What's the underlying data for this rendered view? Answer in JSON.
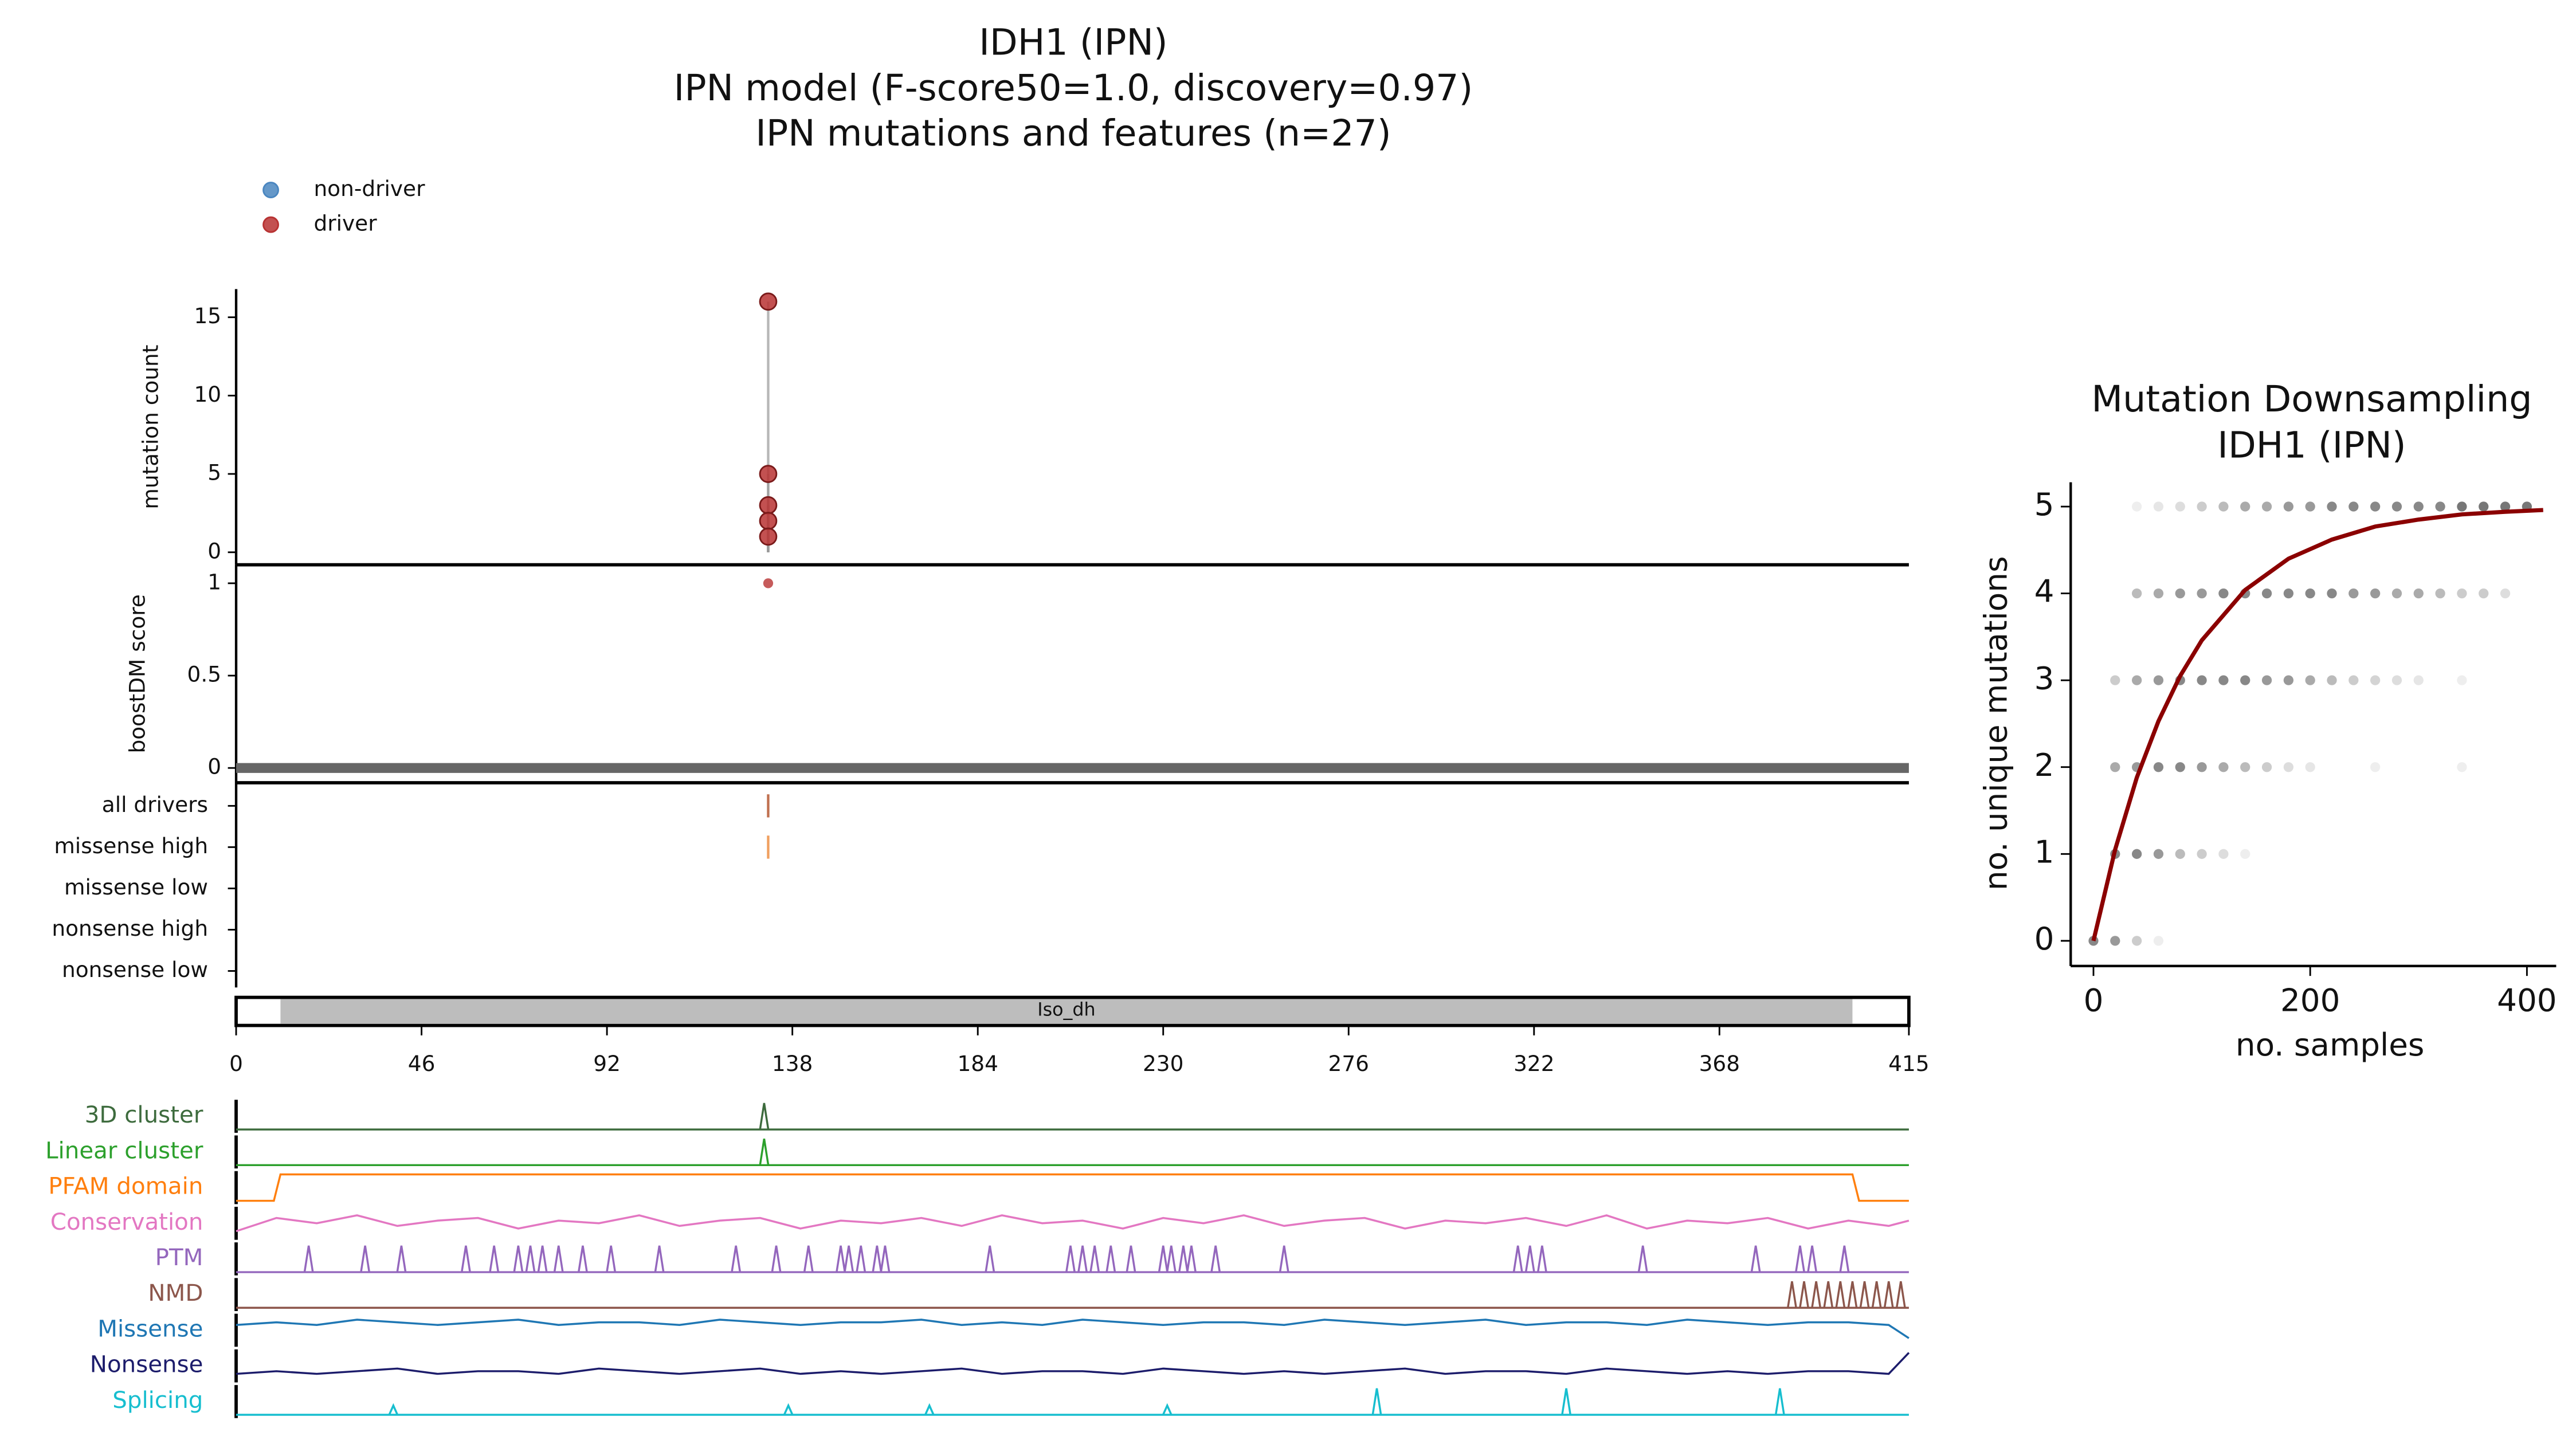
{
  "chart_data": [
    {
      "type": "needle",
      "title": [
        "IDH1 (IPN)",
        "IPN model (F-score50=1.0, discovery=0.97)",
        "IPN mutations and features (n=27)"
      ],
      "series": [
        {
          "name": "non-driver",
          "color": "#4a86c0",
          "x": [],
          "values": []
        },
        {
          "name": "driver",
          "color": "#b83232",
          "x": [
            132,
            132,
            132,
            132,
            132
          ],
          "values": [
            16,
            5,
            3,
            2,
            1
          ]
        }
      ],
      "xlim": [
        0,
        415
      ],
      "xticks": [
        0,
        46,
        92,
        138,
        184,
        230,
        276,
        322,
        368,
        415
      ],
      "ylabel": "mutation count",
      "ylim": [
        -0.8,
        16.8
      ],
      "yticks": [
        0,
        5,
        10,
        15
      ],
      "score": {
        "ylabel": "boostDM score",
        "ylim": [
          -0.08,
          1.1
        ],
        "yticks": [
          0,
          0.5,
          1
        ],
        "color": "#b83232",
        "x": [
          132
        ],
        "values": [
          1
        ]
      },
      "features": {
        "categories": [
          "all drivers",
          "missense high",
          "missense low",
          "nonsense high",
          "nonsense low"
        ],
        "colors": [
          "#c07050",
          "#f0a060",
          "#80b0e0",
          "#a070c0",
          "#c0a0e0"
        ],
        "x": [
          [
            132
          ],
          [
            132
          ],
          [],
          [],
          []
        ]
      },
      "domain": {
        "name": "Iso_dh",
        "start": 11,
        "end": 401
      },
      "signal_x": [
        0,
        10,
        20,
        30,
        40,
        50,
        60,
        70,
        80,
        90,
        100,
        110,
        120,
        130,
        140,
        150,
        160,
        170,
        180,
        190,
        200,
        210,
        220,
        230,
        240,
        250,
        260,
        270,
        280,
        290,
        300,
        310,
        320,
        330,
        340,
        350,
        360,
        370,
        380,
        390,
        400,
        410,
        415
      ],
      "tracks": [
        {
          "name": "3D cluster",
          "color": "#3d6b3d",
          "kind": "peaks",
          "peaks": [
            131
          ],
          "heights": [
            1
          ]
        },
        {
          "name": "Linear cluster",
          "color": "#2ca02c",
          "kind": "peaks",
          "peaks": [
            131
          ],
          "heights": [
            1
          ]
        },
        {
          "name": "PFAM domain",
          "color": "#ff7f0e",
          "kind": "domain"
        },
        {
          "name": "Conservation",
          "color": "#e377c2",
          "kind": "signal",
          "values": [
            0.2,
            0.7,
            0.5,
            0.8,
            0.4,
            0.6,
            0.7,
            0.3,
            0.6,
            0.5,
            0.8,
            0.4,
            0.6,
            0.7,
            0.3,
            0.6,
            0.5,
            0.7,
            0.4,
            0.8,
            0.5,
            0.6,
            0.3,
            0.7,
            0.5,
            0.8,
            0.4,
            0.6,
            0.7,
            0.3,
            0.6,
            0.5,
            0.7,
            0.4,
            0.8,
            0.3,
            0.6,
            0.5,
            0.7,
            0.3,
            0.6,
            0.4,
            0.6
          ]
        },
        {
          "name": "PTM",
          "color": "#9467bd",
          "kind": "peaks",
          "peaks": [
            18,
            32,
            41,
            57,
            64,
            70,
            73,
            76,
            80,
            86,
            93,
            105,
            124,
            134,
            142,
            150,
            152,
            155,
            159,
            161,
            187,
            207,
            210,
            213,
            217,
            222,
            230,
            232,
            235,
            237,
            243,
            260,
            318,
            321,
            324,
            349,
            377,
            388,
            391,
            399
          ],
          "heights": [
            1,
            1,
            1,
            1,
            1,
            1,
            1,
            1,
            1,
            1,
            1,
            1,
            1,
            1,
            1,
            1,
            1,
            1,
            1,
            1,
            1,
            1,
            1,
            1,
            1,
            1,
            1,
            1,
            1,
            1,
            1,
            1,
            1,
            1,
            1,
            1,
            1,
            1,
            1,
            1
          ]
        },
        {
          "name": "NMD",
          "color": "#8c564b",
          "kind": "peaks",
          "peaks": [
            386,
            389,
            392,
            395,
            398,
            401,
            404,
            407,
            410,
            413
          ],
          "heights": [
            1,
            1,
            1,
            1,
            1,
            1,
            1,
            1,
            1,
            1
          ]
        },
        {
          "name": "Missense",
          "color": "#1f77b4",
          "kind": "signal",
          "values": [
            0.7,
            0.8,
            0.7,
            0.9,
            0.8,
            0.7,
            0.8,
            0.9,
            0.7,
            0.8,
            0.8,
            0.7,
            0.9,
            0.8,
            0.7,
            0.8,
            0.8,
            0.9,
            0.7,
            0.8,
            0.7,
            0.9,
            0.8,
            0.7,
            0.8,
            0.8,
            0.7,
            0.9,
            0.8,
            0.7,
            0.8,
            0.9,
            0.7,
            0.8,
            0.8,
            0.7,
            0.9,
            0.8,
            0.7,
            0.8,
            0.8,
            0.7,
            0.2
          ]
        },
        {
          "name": "Nonsense",
          "color": "#1c1c6b",
          "kind": "signal",
          "values": [
            0.2,
            0.3,
            0.2,
            0.3,
            0.4,
            0.2,
            0.3,
            0.3,
            0.2,
            0.4,
            0.3,
            0.2,
            0.3,
            0.4,
            0.2,
            0.3,
            0.2,
            0.3,
            0.4,
            0.2,
            0.3,
            0.3,
            0.2,
            0.4,
            0.3,
            0.2,
            0.3,
            0.2,
            0.3,
            0.4,
            0.2,
            0.3,
            0.3,
            0.2,
            0.4,
            0.3,
            0.2,
            0.3,
            0.2,
            0.3,
            0.3,
            0.2,
            1.0
          ]
        },
        {
          "name": "Splicing",
          "color": "#17becf",
          "kind": "peaks",
          "peaks": [
            39,
            137,
            172,
            231,
            283,
            330,
            383
          ],
          "heights": [
            0.35,
            0.35,
            0.35,
            0.35,
            1,
            1,
            1
          ]
        }
      ]
    },
    {
      "type": "scatter",
      "title": [
        "Mutation Downsampling",
        "IDH1 (IPN)"
      ],
      "xlabel": "no. samples",
      "ylabel": "no. unique mutations",
      "xlim": [
        -21,
        427
      ],
      "ylim": [
        -0.29,
        5.28
      ],
      "xticks": [
        0,
        200,
        400
      ],
      "yticks": [
        0,
        1,
        2,
        3,
        4,
        5
      ],
      "color": "#555555",
      "x": [
        0,
        20,
        40,
        60,
        20,
        40,
        60,
        80,
        100,
        120,
        140,
        20,
        40,
        60,
        80,
        100,
        120,
        140,
        160,
        180,
        200,
        260,
        340,
        20,
        40,
        60,
        80,
        100,
        120,
        140,
        160,
        180,
        200,
        220,
        240,
        260,
        280,
        300,
        340,
        40,
        60,
        80,
        100,
        120,
        140,
        160,
        180,
        200,
        220,
        240,
        260,
        280,
        300,
        320,
        340,
        360,
        380,
        40,
        60,
        80,
        100,
        120,
        140,
        160,
        180,
        200,
        220,
        240,
        260,
        280,
        300,
        320,
        340,
        360,
        380,
        400
      ],
      "values": [
        0,
        0,
        0,
        0,
        1,
        1,
        1,
        1,
        1,
        1,
        1,
        2,
        2,
        2,
        2,
        2,
        2,
        2,
        2,
        2,
        2,
        2,
        2,
        3,
        3,
        3,
        3,
        3,
        3,
        3,
        3,
        3,
        3,
        3,
        3,
        3,
        3,
        3,
        3,
        4,
        4,
        4,
        4,
        4,
        4,
        4,
        4,
        4,
        4,
        4,
        4,
        4,
        4,
        4,
        4,
        4,
        4,
        5,
        5,
        5,
        5,
        5,
        5,
        5,
        5,
        5,
        5,
        5,
        5,
        5,
        5,
        5,
        5,
        5,
        5,
        5
      ],
      "alpha": [
        0.7,
        0.6,
        0.3,
        0.1,
        0.7,
        0.7,
        0.6,
        0.4,
        0.3,
        0.2,
        0.1,
        0.5,
        0.6,
        0.7,
        0.7,
        0.6,
        0.5,
        0.4,
        0.3,
        0.2,
        0.15,
        0.1,
        0.1,
        0.3,
        0.5,
        0.6,
        0.7,
        0.7,
        0.7,
        0.7,
        0.6,
        0.6,
        0.5,
        0.4,
        0.3,
        0.25,
        0.2,
        0.15,
        0.1,
        0.4,
        0.5,
        0.6,
        0.6,
        0.7,
        0.7,
        0.7,
        0.7,
        0.7,
        0.7,
        0.6,
        0.6,
        0.5,
        0.5,
        0.4,
        0.3,
        0.3,
        0.2,
        0.1,
        0.15,
        0.2,
        0.3,
        0.4,
        0.5,
        0.5,
        0.6,
        0.6,
        0.7,
        0.7,
        0.7,
        0.7,
        0.7,
        0.7,
        0.8,
        0.8,
        0.8,
        0.8
      ],
      "curve": {
        "color": "#8b0000",
        "x": [
          0,
          20,
          40,
          60,
          80,
          100,
          140,
          180,
          220,
          260,
          300,
          340,
          380,
          415
        ],
        "values": [
          0,
          1.05,
          1.88,
          2.53,
          3.05,
          3.46,
          4.04,
          4.4,
          4.62,
          4.77,
          4.85,
          4.91,
          4.94,
          4.96
        ]
      }
    }
  ]
}
